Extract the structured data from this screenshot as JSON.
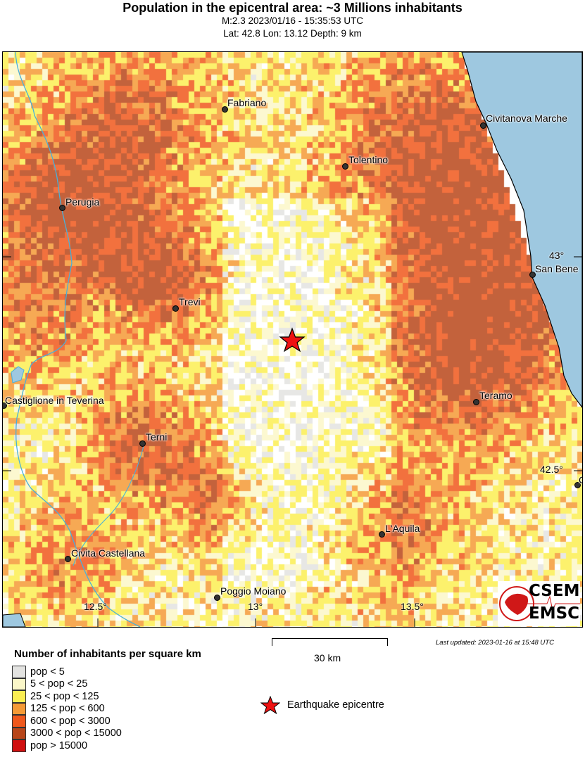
{
  "header": {
    "title": "Population in the epicentral area: ~3 Millions inhabitants",
    "line1": "M:2.3 2023/01/16 - 15:35:53 UTC",
    "line2": "Lat: 42.8 Lon: 13.12 Depth: 9 km"
  },
  "map": {
    "cities": [
      "Fabriano",
      "Civitanova Marche",
      "Tolentino",
      "Perugia",
      "San Bene",
      "Trevi",
      "Teramo",
      "Castiglione in Teverina",
      "Terni",
      "L'Aquila",
      "Civita Castellana",
      "Poggio Moiano",
      "C"
    ],
    "lon_ticks": [
      "12.5°",
      "13°",
      "13.5°"
    ],
    "lat_ticks": [
      "43°",
      "42.5°"
    ],
    "sea_color": "#9ec8e0",
    "river_color": "#4ab0d8",
    "epicentre_color": "#ee1111",
    "logo_text": [
      "CSEM",
      "EMSC"
    ]
  },
  "scale": {
    "label": "30 km"
  },
  "updated": "Last updated: 2023-01-16 at 15:48 UTC",
  "legend": {
    "title": "Number of inhabitants per square km",
    "items": [
      {
        "label": "pop < 5",
        "color": "#e3e3e1"
      },
      {
        "label": "5 < pop < 25",
        "color": "#fbf7c8"
      },
      {
        "label": "25 < pop < 125",
        "color": "#fbee52"
      },
      {
        "label": "125 < pop < 600",
        "color": "#f59a36"
      },
      {
        "label": "600 < pop < 3000",
        "color": "#f0581c"
      },
      {
        "label": "3000 < pop < 15000",
        "color": "#b8461a"
      },
      {
        "label": "pop > 15000",
        "color": "#d01010"
      }
    ],
    "epicentre_label": "Earthquake epicentre"
  }
}
